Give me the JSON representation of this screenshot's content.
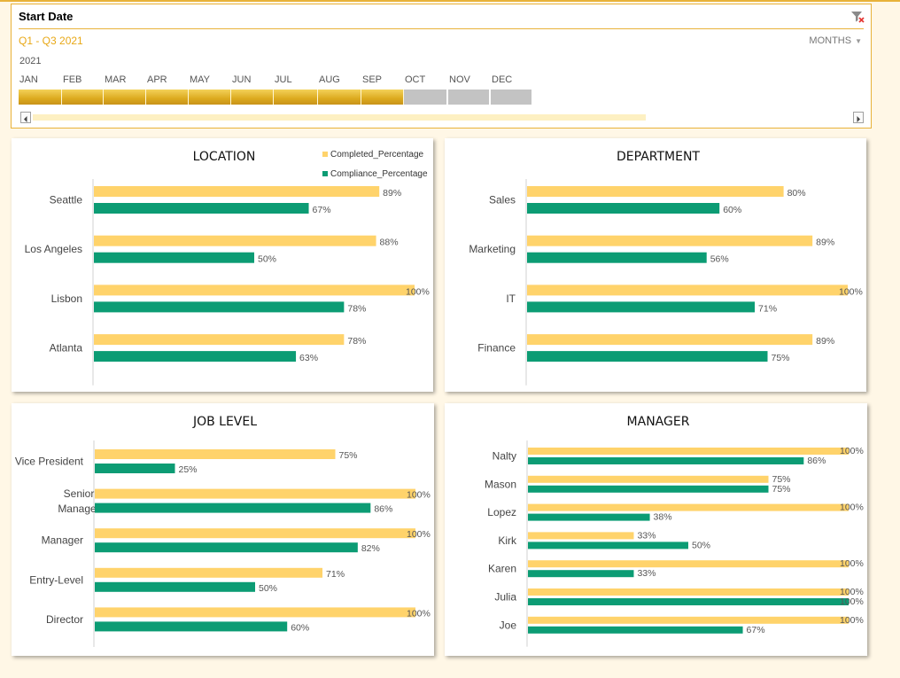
{
  "slicer": {
    "title": "Start Date",
    "range_label": "Q1 - Q3 2021",
    "time_level": "MONTHS",
    "year": "2021",
    "months": [
      {
        "label": "JAN",
        "selected": true
      },
      {
        "label": "FEB",
        "selected": true
      },
      {
        "label": "MAR",
        "selected": true
      },
      {
        "label": "APR",
        "selected": true
      },
      {
        "label": "MAY",
        "selected": true
      },
      {
        "label": "JUN",
        "selected": true
      },
      {
        "label": "JUL",
        "selected": true
      },
      {
        "label": "AUG",
        "selected": true
      },
      {
        "label": "SEP",
        "selected": true
      },
      {
        "label": "OCT",
        "selected": false
      },
      {
        "label": "NOV",
        "selected": false
      },
      {
        "label": "DEC",
        "selected": false
      }
    ],
    "icons": {
      "filter": "clear-filter-icon",
      "scroll_left": "scroll-left-arrow-icon",
      "scroll_right": "scroll-right-arrow-icon"
    }
  },
  "colors": {
    "completed": "#ffd36b",
    "compliance": "#0c9c74",
    "selected_month": "#dcaa1e",
    "unselected_month": "#c3c3c3",
    "accent": "#e8b23a"
  },
  "chart_data": [
    {
      "id": "location",
      "type": "bar",
      "orientation": "horizontal",
      "title": "LOCATION",
      "legend": [
        "Completed_Percentage",
        "Compliance_Percentage"
      ],
      "categories": [
        "Seattle",
        "Los Angeles",
        "Lisbon",
        "Atlanta"
      ],
      "series": [
        {
          "name": "Completed_Percentage",
          "values": [
            89,
            88,
            100,
            78
          ],
          "labels": [
            "89%",
            "88%",
            "100%",
            "78%"
          ]
        },
        {
          "name": "Compliance_Percentage",
          "values": [
            67,
            50,
            78,
            63
          ],
          "labels": [
            "67%",
            "50%",
            "78%",
            "63%"
          ]
        }
      ],
      "xlim": [
        0,
        100
      ]
    },
    {
      "id": "department",
      "type": "bar",
      "orientation": "horizontal",
      "title": "DEPARTMENT",
      "categories": [
        "Sales",
        "Marketing",
        "IT",
        "Finance"
      ],
      "series": [
        {
          "name": "Completed_Percentage",
          "values": [
            80,
            89,
            100,
            89
          ],
          "labels": [
            "80%",
            "89%",
            "100%",
            "89%"
          ]
        },
        {
          "name": "Compliance_Percentage",
          "values": [
            60,
            56,
            71,
            75
          ],
          "labels": [
            "60%",
            "56%",
            "71%",
            "75%"
          ]
        }
      ],
      "xlim": [
        0,
        100
      ]
    },
    {
      "id": "job-level",
      "type": "bar",
      "orientation": "horizontal",
      "title": "JOB LEVEL",
      "categories": [
        "Vice President",
        "Senior Manager",
        "Manager",
        "Entry-Level",
        "Director"
      ],
      "series": [
        {
          "name": "Completed_Percentage",
          "values": [
            75,
            100,
            100,
            71,
            100
          ],
          "labels": [
            "75%",
            "100%",
            "100%",
            "71%",
            "100%"
          ]
        },
        {
          "name": "Compliance_Percentage",
          "values": [
            25,
            86,
            82,
            50,
            60
          ],
          "labels": [
            "25%",
            "86%",
            "82%",
            "50%",
            "60%"
          ]
        }
      ],
      "xlim": [
        0,
        100
      ]
    },
    {
      "id": "manager",
      "type": "bar",
      "orientation": "horizontal",
      "title": "MANAGER",
      "categories": [
        "Nalty",
        "Mason",
        "Lopez",
        "Kirk",
        "Karen",
        "Julia",
        "Joe"
      ],
      "series": [
        {
          "name": "Completed_Percentage",
          "values": [
            100,
            75,
            100,
            33,
            100,
            100,
            100
          ],
          "labels": [
            "100%",
            "75%",
            "100%",
            "33%",
            "100%",
            "100%",
            "100%"
          ]
        },
        {
          "name": "Compliance_Percentage",
          "values": [
            86,
            75,
            38,
            50,
            33,
            100,
            67
          ],
          "labels": [
            "86%",
            "75%",
            "38%",
            "50%",
            "33%",
            "100%",
            "67%"
          ]
        }
      ],
      "xlim": [
        0,
        100
      ]
    }
  ]
}
